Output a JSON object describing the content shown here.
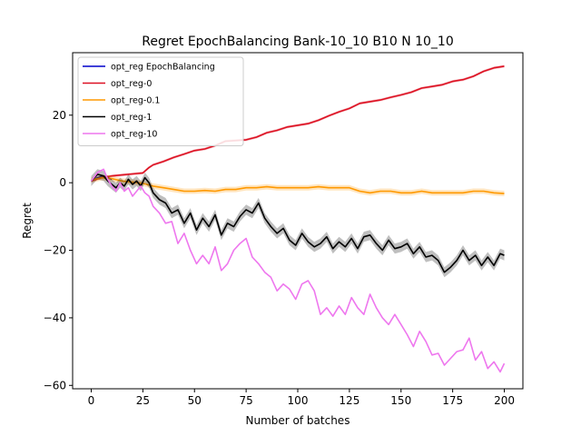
{
  "chart_data": {
    "type": "line",
    "title": "Regret EpochBalancing Bank-10_10 B10 N 10_10",
    "xlabel": "Number of batches",
    "ylabel": "Regret",
    "xlim": [
      -9,
      209
    ],
    "ylim": [
      -61,
      38.5
    ],
    "xticks": [
      0,
      25,
      50,
      75,
      100,
      125,
      150,
      175,
      200
    ],
    "xtick_labels": [
      "0",
      "25",
      "50",
      "75",
      "100",
      "125",
      "150",
      "175",
      "200"
    ],
    "yticks": [
      -60,
      -40,
      -20,
      0,
      20
    ],
    "ytick_labels": [
      "−60",
      "−40",
      "−20",
      "0",
      "20"
    ],
    "grid": false,
    "legend_position": "top-left",
    "series": [
      {
        "name": "opt_reg EpochBalancing",
        "color": "#0000cc",
        "x": [
          0,
          3,
          6,
          8,
          10
        ],
        "y": [
          0.5,
          1.5,
          2.0,
          1.5,
          1.0
        ],
        "band": 0
      },
      {
        "name": "opt_reg-0",
        "color": "#dd1122",
        "x": [
          0,
          5,
          10,
          15,
          20,
          25,
          28,
          30,
          35,
          40,
          45,
          50,
          55,
          60,
          65,
          70,
          75,
          80,
          85,
          90,
          95,
          100,
          105,
          110,
          115,
          120,
          125,
          130,
          135,
          140,
          145,
          150,
          155,
          160,
          165,
          170,
          175,
          180,
          185,
          190,
          195,
          200
        ],
        "y": [
          0.5,
          1.5,
          2.0,
          2.3,
          2.6,
          2.9,
          4.5,
          5.3,
          6.3,
          7.5,
          8.5,
          9.5,
          10.0,
          11.0,
          12.3,
          12.5,
          12.7,
          13.5,
          14.8,
          15.5,
          16.5,
          17.0,
          17.5,
          18.5,
          19.8,
          21.0,
          22.0,
          23.5,
          24.0,
          24.5,
          25.3,
          26.0,
          26.8,
          28.0,
          28.5,
          29.0,
          30.0,
          30.5,
          31.5,
          33.0,
          34.0,
          34.5
        ],
        "band": 0.4
      },
      {
        "name": "opt_reg-0.1",
        "color": "#ff9900",
        "x": [
          0,
          5,
          10,
          15,
          20,
          25,
          30,
          35,
          40,
          45,
          50,
          55,
          60,
          65,
          70,
          75,
          80,
          85,
          90,
          95,
          100,
          105,
          110,
          115,
          120,
          125,
          130,
          135,
          140,
          145,
          150,
          155,
          160,
          165,
          170,
          175,
          180,
          185,
          190,
          195,
          200
        ],
        "y": [
          0.8,
          1.5,
          1.2,
          0.5,
          0.2,
          -0.2,
          -1.0,
          -1.5,
          -2.0,
          -2.5,
          -2.5,
          -2.3,
          -2.5,
          -2.0,
          -2.0,
          -1.5,
          -1.5,
          -1.2,
          -1.5,
          -1.5,
          -1.5,
          -1.5,
          -1.2,
          -1.5,
          -1.5,
          -1.5,
          -2.5,
          -3.0,
          -2.5,
          -2.5,
          -3.0,
          -3.0,
          -2.5,
          -3.0,
          -3.0,
          -3.0,
          -3.0,
          -2.5,
          -2.5,
          -3.0,
          -3.2
        ],
        "band": 0.8
      },
      {
        "name": "opt_reg-1",
        "color": "#000000",
        "x": [
          0,
          3,
          6,
          8,
          10,
          12,
          14,
          16,
          18,
          20,
          22,
          24,
          26,
          28,
          30,
          33,
          36,
          39,
          42,
          45,
          48,
          51,
          54,
          57,
          60,
          63,
          66,
          69,
          72,
          75,
          78,
          81,
          84,
          87,
          90,
          93,
          96,
          99,
          102,
          105,
          108,
          111,
          114,
          117,
          120,
          123,
          126,
          129,
          132,
          135,
          138,
          141,
          144,
          147,
          150,
          153,
          156,
          159,
          162,
          165,
          168,
          171,
          174,
          177,
          180,
          183,
          186,
          189,
          192,
          195,
          198,
          200
        ],
        "y": [
          0.5,
          2.5,
          2.0,
          0.5,
          -0.5,
          -1.5,
          0.0,
          -1.0,
          1.0,
          -0.5,
          0.5,
          -1.0,
          1.5,
          0.0,
          -3.0,
          -5.0,
          -6.0,
          -9.0,
          -8.0,
          -12.0,
          -9.0,
          -14.0,
          -10.5,
          -13.0,
          -9.5,
          -15.5,
          -12.0,
          -13.0,
          -10.0,
          -8.0,
          -9.0,
          -6.0,
          -10.5,
          -13.0,
          -15.0,
          -13.5,
          -17.0,
          -18.5,
          -15.0,
          -17.5,
          -19.0,
          -18.0,
          -16.0,
          -19.5,
          -17.5,
          -19.0,
          -16.5,
          -19.5,
          -16.0,
          -15.5,
          -18.0,
          -20.0,
          -17.0,
          -19.5,
          -19.0,
          -18.0,
          -21.0,
          -19.0,
          -22.0,
          -21.5,
          -23.0,
          -26.5,
          -25.0,
          -23.0,
          -20.0,
          -23.0,
          -21.5,
          -24.5,
          -22.0,
          -24.5,
          -21.0,
          -21.5
        ],
        "band": 1.5
      },
      {
        "name": "opt_reg-10",
        "color": "#ee77ee",
        "x": [
          0,
          3,
          6,
          8,
          10,
          12,
          14,
          16,
          18,
          20,
          22,
          24,
          26,
          28,
          30,
          33,
          36,
          39,
          42,
          45,
          48,
          51,
          54,
          57,
          60,
          63,
          66,
          69,
          72,
          75,
          78,
          81,
          84,
          87,
          90,
          93,
          96,
          99,
          102,
          105,
          108,
          111,
          114,
          117,
          120,
          123,
          126,
          129,
          132,
          135,
          138,
          141,
          144,
          147,
          150,
          153,
          156,
          159,
          162,
          165,
          168,
          171,
          174,
          177,
          180,
          183,
          186,
          189,
          192,
          195,
          198,
          200
        ],
        "y": [
          0.5,
          3.0,
          4.0,
          1.0,
          -1.0,
          -2.5,
          0.0,
          -2.5,
          -1.5,
          -4.0,
          -2.5,
          -1.0,
          -3.0,
          -4.0,
          -7.0,
          -9.0,
          -12.0,
          -11.5,
          -18.0,
          -15.0,
          -20.0,
          -24.0,
          -21.5,
          -24.0,
          -19.0,
          -26.0,
          -24.0,
          -20.0,
          -18.0,
          -16.5,
          -22.0,
          -24.0,
          -26.5,
          -28.0,
          -32.0,
          -30.0,
          -31.5,
          -34.5,
          -30.0,
          -29.0,
          -32.0,
          -39.0,
          -37.0,
          -39.5,
          -36.5,
          -39.0,
          -34.0,
          -37.0,
          -39.0,
          -33.0,
          -37.0,
          -40.0,
          -42.0,
          -39.0,
          -42.0,
          -45.0,
          -48.5,
          -44.0,
          -47.0,
          -51.0,
          -50.5,
          -54.0,
          -52.0,
          -50.0,
          -49.5,
          -46.0,
          -52.5,
          -50.0,
          -55.0,
          -53.0,
          -56.0,
          -53.5
        ],
        "band": 0
      }
    ]
  }
}
